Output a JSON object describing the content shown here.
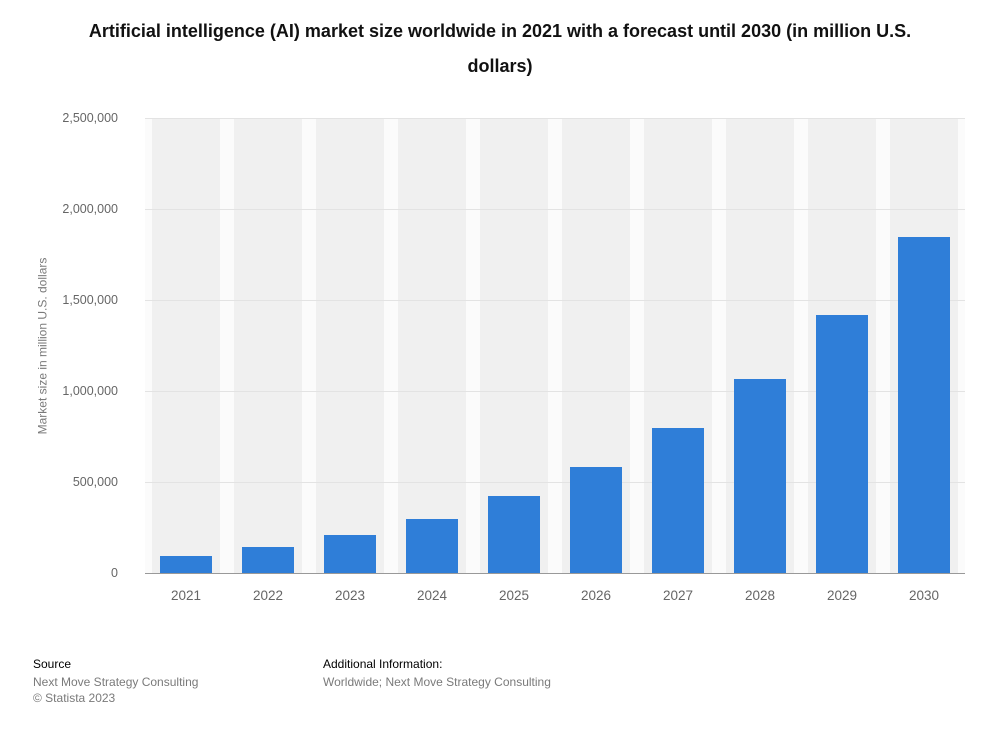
{
  "chart_data": {
    "type": "bar",
    "title": "Artificial intelligence (AI) market size worldwide in 2021 with a forecast until 2030 (in million U.S. dollars)",
    "categories": [
      "2021",
      "2022",
      "2023",
      "2024",
      "2025",
      "2026",
      "2027",
      "2028",
      "2029",
      "2030"
    ],
    "values": [
      93530,
      142320,
      207900,
      298250,
      420470,
      582950,
      795390,
      1068550,
      1415870,
      1847500
    ],
    "xlabel": "",
    "ylabel": "Market size in million U.S. dollars",
    "ylim": [
      0,
      2500000
    ],
    "ytick_values": [
      0,
      500000,
      1000000,
      1500000,
      2000000,
      2500000
    ],
    "ytick_labels": [
      "0",
      "500,000",
      "1,000,000",
      "1,500,000",
      "2,000,000",
      "2,500,000"
    ],
    "grid": "horizontal",
    "legend": "none",
    "bar_color": "#2f7ed8",
    "band_color": "#f0f0f0",
    "plot_background": "#fbfbfb",
    "gridline_color": "#e3e3e3"
  },
  "footer": {
    "source_label": "Source",
    "source_name": "Next Move Strategy Consulting",
    "copyright": "© Statista 2023",
    "additional_label": "Additional Information:",
    "additional_text": "Worldwide; Next Move Strategy Consulting"
  }
}
